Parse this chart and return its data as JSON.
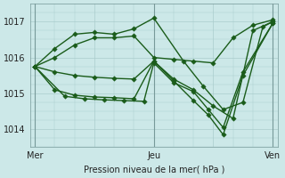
{
  "xlabel": "Pression niveau de la mer( hPa )",
  "background_color": "#cce8e8",
  "plot_bg_color": "#cce8e8",
  "grid_color": "#aacccc",
  "line_color": "#1a5c1a",
  "marker_color": "#1a5c1a",
  "ylim": [
    1013.5,
    1017.5
  ],
  "yticks": [
    1014,
    1015,
    1016,
    1017
  ],
  "xtick_labels": [
    "Mer",
    "",
    "Jeu",
    "",
    "Ven"
  ],
  "xtick_positions": [
    0,
    24,
    48,
    72,
    96
  ],
  "day_lines": [
    0,
    48,
    96
  ],
  "lines": [
    {
      "x": [
        0,
        8,
        16,
        24,
        32,
        40,
        48,
        56,
        64,
        72,
        80,
        88,
        96
      ],
      "y": [
        1015.75,
        1016.0,
        1016.35,
        1016.55,
        1016.55,
        1016.6,
        1016.0,
        1015.95,
        1015.9,
        1015.85,
        1016.55,
        1016.9,
        1017.05
      ]
    },
    {
      "x": [
        0,
        8,
        16,
        24,
        32,
        40,
        48,
        60,
        68,
        76,
        84,
        92,
        96
      ],
      "y": [
        1015.75,
        1016.25,
        1016.65,
        1016.7,
        1016.65,
        1016.8,
        1017.1,
        1015.9,
        1015.2,
        1014.55,
        1014.75,
        1016.85,
        1017.0
      ]
    },
    {
      "x": [
        0,
        8,
        16,
        24,
        32,
        40,
        48,
        56,
        64,
        72,
        80,
        88,
        96
      ],
      "y": [
        1015.75,
        1015.6,
        1015.5,
        1015.45,
        1015.42,
        1015.4,
        1015.9,
        1015.4,
        1015.1,
        1014.65,
        1014.3,
        1016.75,
        1017.0
      ]
    },
    {
      "x": [
        0,
        8,
        16,
        24,
        32,
        40,
        48,
        56,
        64,
        70,
        76,
        84,
        96
      ],
      "y": [
        1015.75,
        1015.1,
        1014.95,
        1014.9,
        1014.88,
        1014.85,
        1015.9,
        1015.35,
        1014.8,
        1014.4,
        1013.85,
        1015.5,
        1016.95
      ]
    },
    {
      "x": [
        0,
        12,
        20,
        28,
        36,
        44,
        48,
        56,
        64,
        70,
        76,
        84,
        96
      ],
      "y": [
        1015.75,
        1014.92,
        1014.85,
        1014.82,
        1014.8,
        1014.78,
        1015.85,
        1015.3,
        1015.05,
        1014.55,
        1014.05,
        1015.6,
        1016.95
      ]
    }
  ],
  "line_width": 1.0,
  "marker_size": 2.8
}
